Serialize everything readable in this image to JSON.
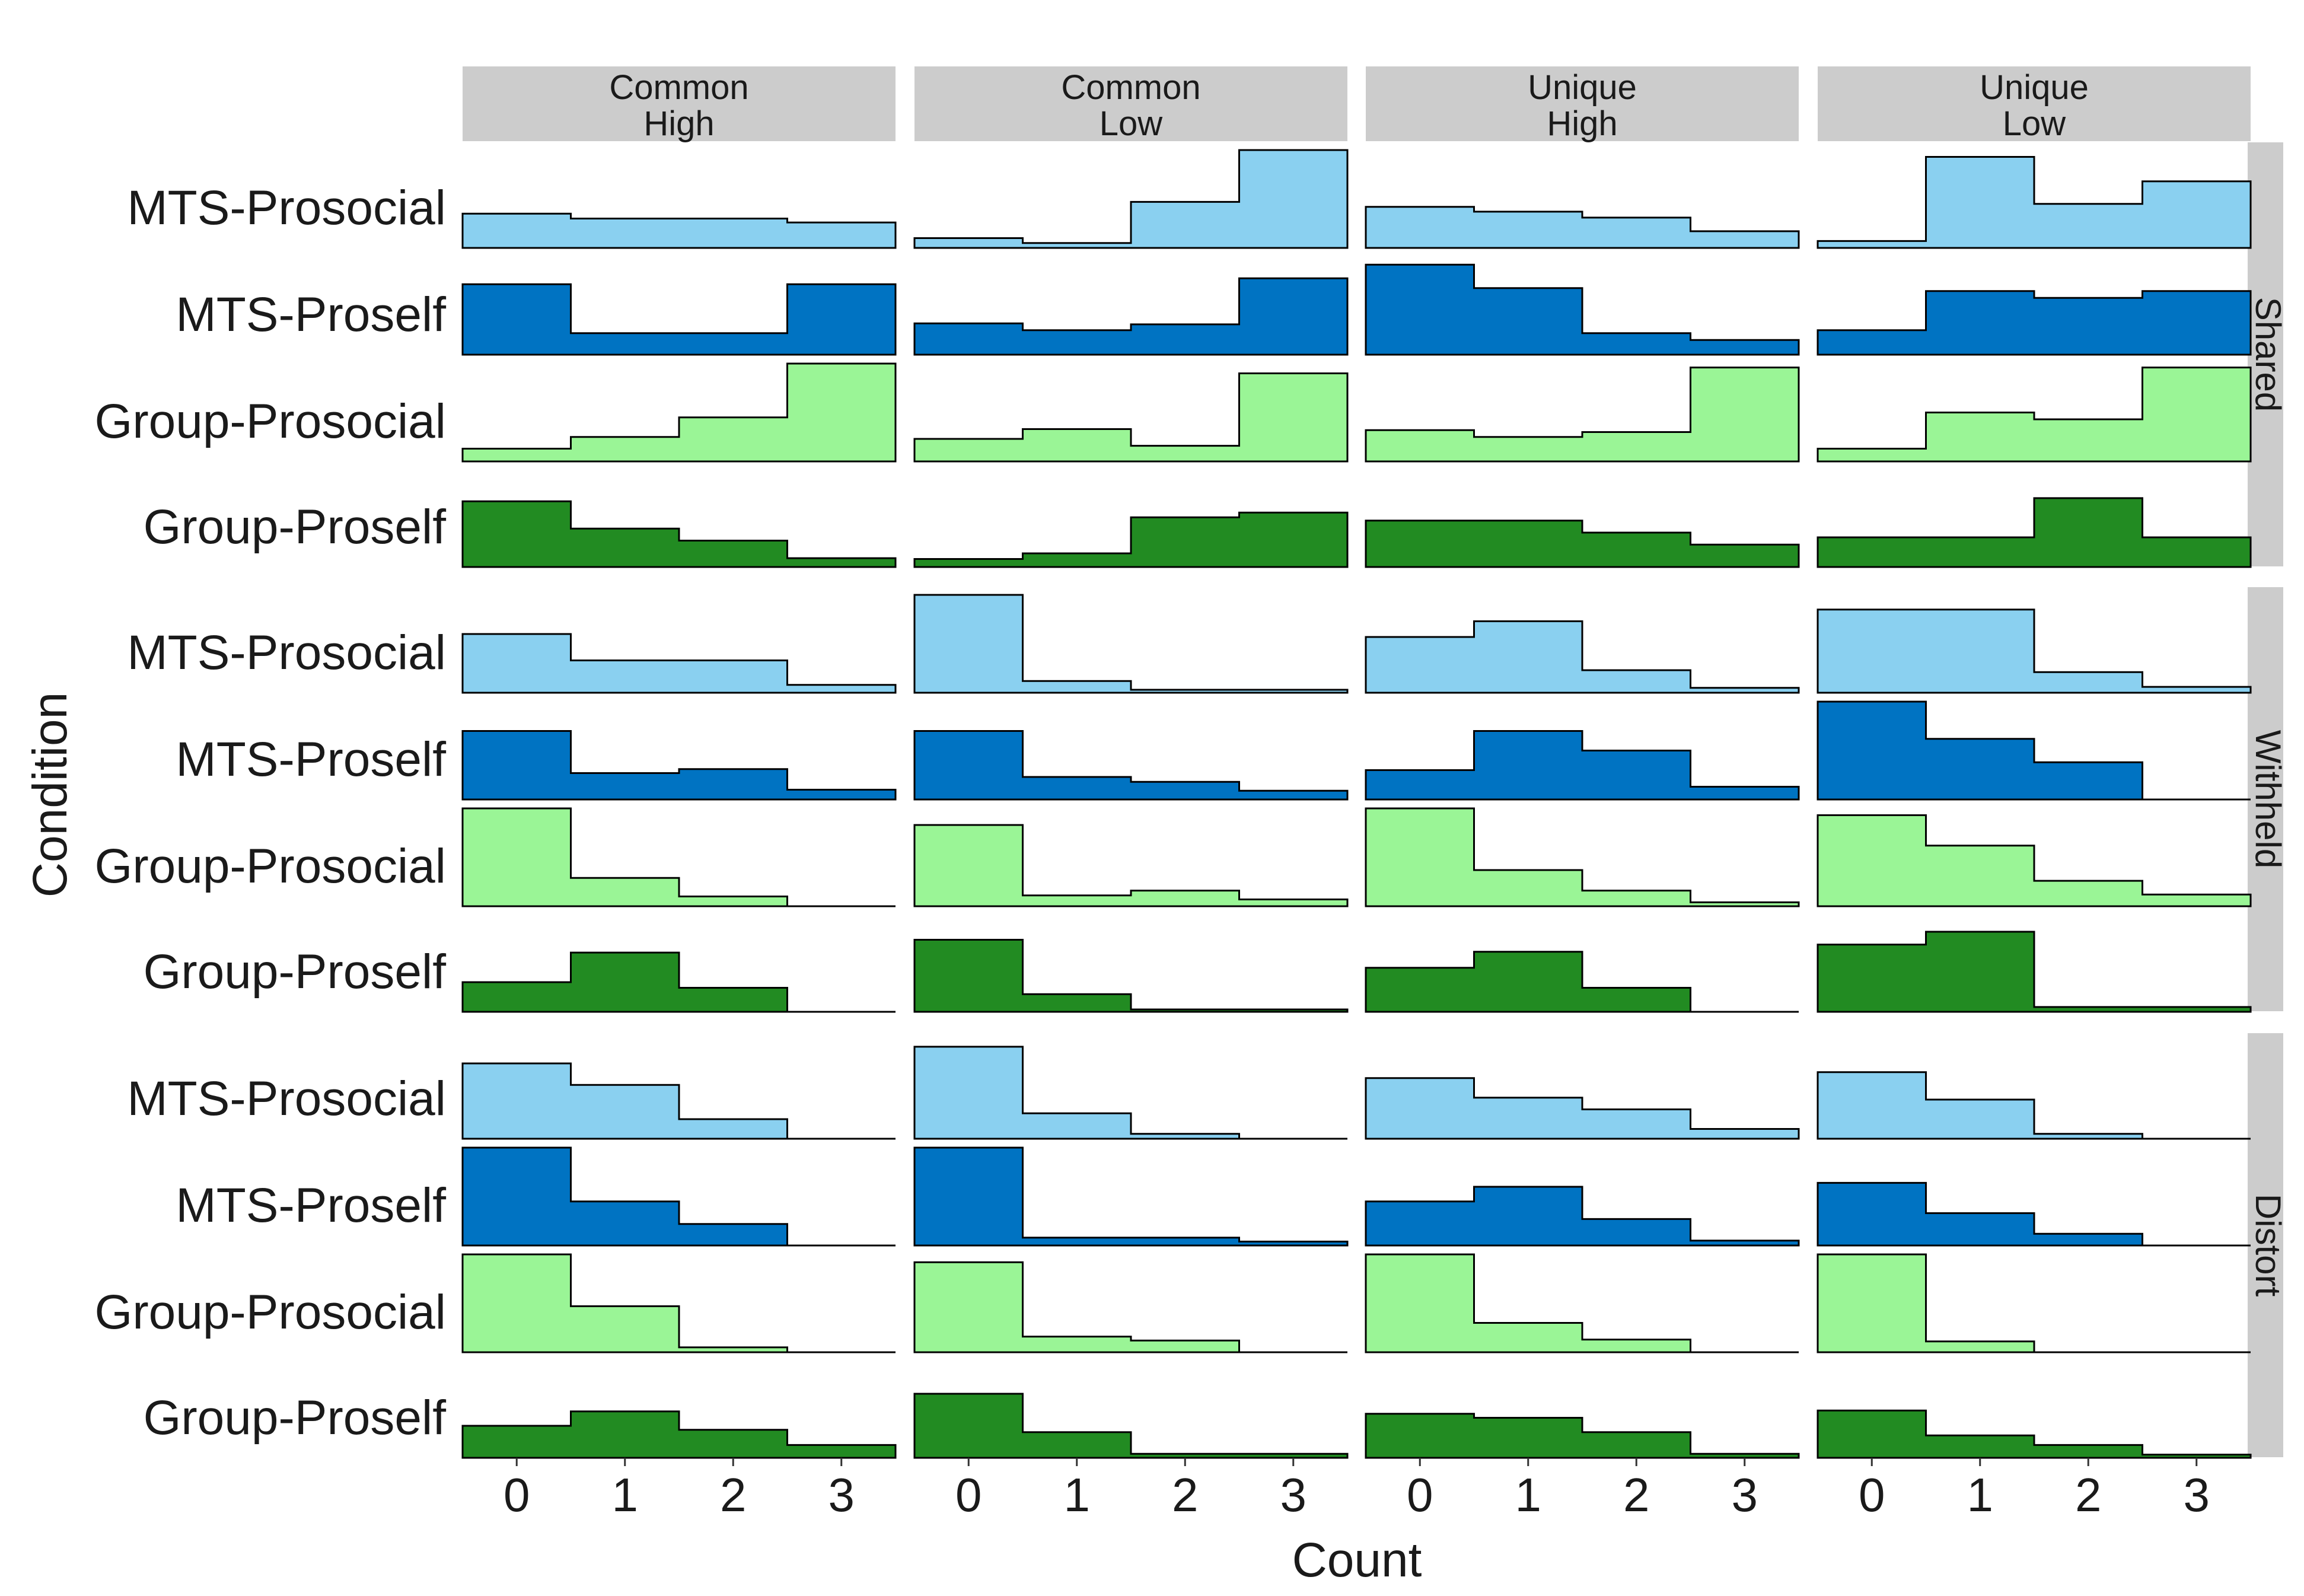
{
  "chart_data": {
    "type": "area",
    "subtype": "step-histogram-ridgeline",
    "xlabel": "Count",
    "ylabel": "Condition",
    "x": [
      0,
      1,
      2,
      3
    ],
    "columns": [
      {
        "line1": "Common",
        "line2": "High"
      },
      {
        "line1": "Common",
        "line2": "Low"
      },
      {
        "line1": "Unique",
        "line2": "High"
      },
      {
        "line1": "Unique",
        "line2": "Low"
      }
    ],
    "panels": [
      "Shared",
      "Withheld",
      "Distort"
    ],
    "conditions": [
      "MTS-Prosocial",
      "MTS-Proself",
      "Group-Prosocial",
      "Group-Proself"
    ],
    "colors": {
      "MTS-Prosocial": "#8ad0f0",
      "MTS-Proself": "#0073c2",
      "Group-Prosocial": "#9af596",
      "Group-Proself": "#228b22"
    },
    "data": {
      "Shared": {
        "MTS-Prosocial": [
          [
            0.35,
            0.3,
            0.3,
            0.26
          ],
          [
            0.1,
            0.05,
            0.47,
            1.0
          ],
          [
            0.42,
            0.37,
            0.31,
            0.17
          ],
          [
            0.07,
            0.93,
            0.45,
            0.68
          ]
        ],
        "MTS-Proself": [
          [
            0.72,
            0.22,
            0.22,
            0.72
          ],
          [
            0.32,
            0.25,
            0.31,
            0.78
          ],
          [
            0.92,
            0.68,
            0.22,
            0.15
          ],
          [
            0.25,
            0.65,
            0.58,
            0.65
          ]
        ],
        "Group-Prosocial": [
          [
            0.13,
            0.25,
            0.45,
            1.0
          ],
          [
            0.23,
            0.33,
            0.16,
            0.9
          ],
          [
            0.32,
            0.25,
            0.3,
            0.96
          ],
          [
            0.13,
            0.5,
            0.43,
            0.96
          ]
        ],
        "Group-Proself": [
          [
            0.82,
            0.48,
            0.33,
            0.11
          ],
          [
            0.1,
            0.17,
            0.62,
            0.68
          ],
          [
            0.58,
            0.58,
            0.43,
            0.28
          ],
          [
            0.37,
            0.37,
            0.86,
            0.37
          ]
        ]
      },
      "Withheld": {
        "MTS-Prosocial": [
          [
            0.6,
            0.33,
            0.33,
            0.08
          ],
          [
            1.0,
            0.12,
            0.03,
            0.03
          ],
          [
            0.57,
            0.73,
            0.23,
            0.05
          ],
          [
            0.85,
            0.85,
            0.21,
            0.06
          ]
        ],
        "MTS-Proself": [
          [
            0.7,
            0.27,
            0.31,
            0.1
          ],
          [
            0.7,
            0.23,
            0.18,
            0.09
          ],
          [
            0.3,
            0.7,
            0.5,
            0.13
          ],
          [
            1.0,
            0.62,
            0.38,
            0.0
          ]
        ],
        "Group-Prosocial": [
          [
            1.0,
            0.29,
            0.1,
            0.0
          ],
          [
            0.83,
            0.11,
            0.16,
            0.07
          ],
          [
            1.0,
            0.37,
            0.16,
            0.04
          ],
          [
            0.93,
            0.62,
            0.26,
            0.12
          ]
        ],
        "Group-Proself": [
          [
            0.37,
            0.74,
            0.3,
            0.0
          ],
          [
            0.9,
            0.22,
            0.03,
            0.03
          ],
          [
            0.55,
            0.75,
            0.3,
            0.0
          ],
          [
            0.84,
            1.0,
            0.06,
            0.06
          ]
        ]
      },
      "Distort": {
        "MTS-Prosocial": [
          [
            0.77,
            0.55,
            0.2,
            0.0
          ],
          [
            0.94,
            0.26,
            0.05,
            0.0
          ],
          [
            0.62,
            0.42,
            0.3,
            0.1
          ],
          [
            0.68,
            0.4,
            0.05,
            0.0
          ]
        ],
        "MTS-Proself": [
          [
            1.0,
            0.45,
            0.22,
            0.0
          ],
          [
            1.0,
            0.08,
            0.08,
            0.04
          ],
          [
            0.45,
            0.6,
            0.27,
            0.05
          ],
          [
            0.64,
            0.33,
            0.12,
            0.0
          ]
        ],
        "Group-Prosocial": [
          [
            1.0,
            0.47,
            0.05,
            0.0
          ],
          [
            0.92,
            0.16,
            0.12,
            0.0
          ],
          [
            1.0,
            0.3,
            0.13,
            0.0
          ],
          [
            1.0,
            0.11,
            0.0,
            0.0
          ]
        ],
        "Group-Proself": [
          [
            0.4,
            0.58,
            0.35,
            0.16
          ],
          [
            0.8,
            0.32,
            0.05,
            0.05
          ],
          [
            0.55,
            0.5,
            0.32,
            0.05
          ],
          [
            0.59,
            0.28,
            0.16,
            0.04
          ]
        ]
      }
    },
    "grid": false,
    "legend": "none"
  }
}
